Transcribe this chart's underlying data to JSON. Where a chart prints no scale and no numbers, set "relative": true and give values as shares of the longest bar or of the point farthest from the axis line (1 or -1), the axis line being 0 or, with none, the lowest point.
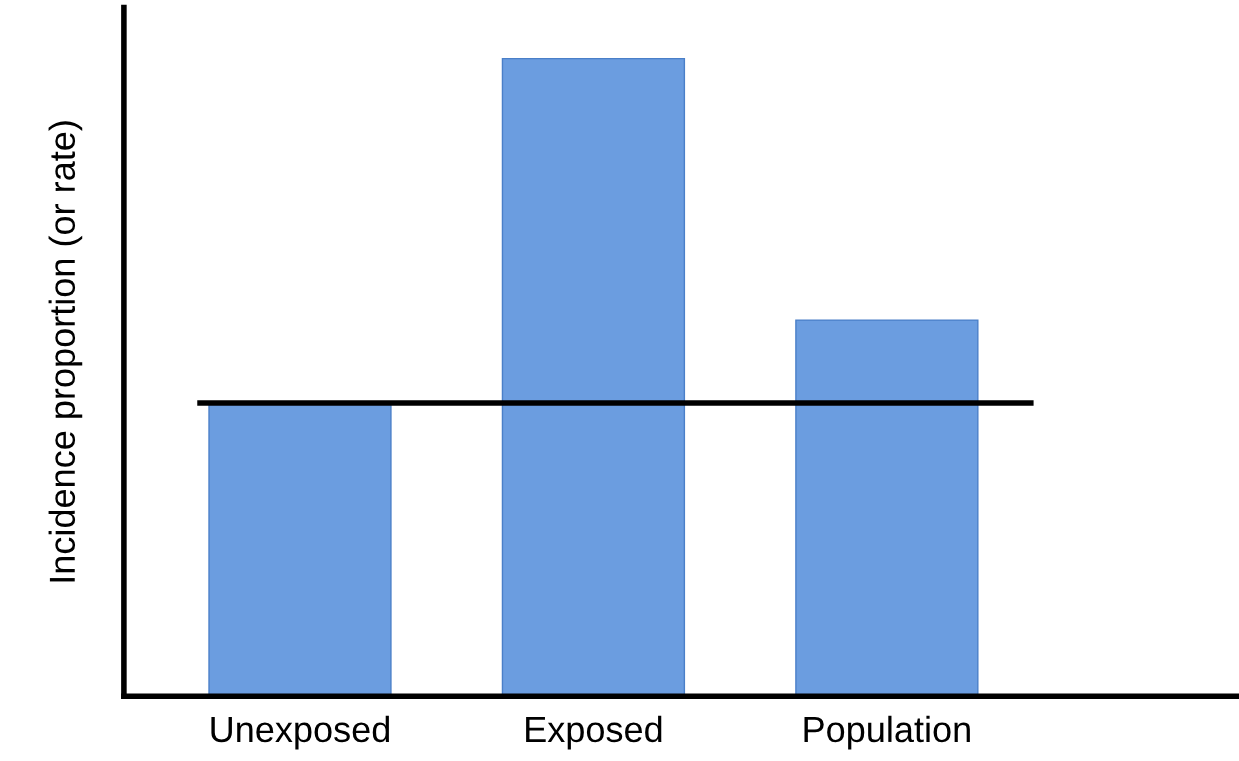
{
  "chart_data": {
    "type": "bar",
    "relative": true,
    "ylabel": "Incidence proportion (or rate)",
    "categories": [
      "Unexposed",
      "Exposed",
      "Population"
    ],
    "values": [
      0.46,
      1,
      0.59
    ],
    "color": "#6b9de0",
    "ref_lines": [
      {
        "axis": "y",
        "value": 0.46,
        "color": "#000000",
        "line_style": "solid"
      }
    ],
    "grid": false,
    "legend": false
  }
}
